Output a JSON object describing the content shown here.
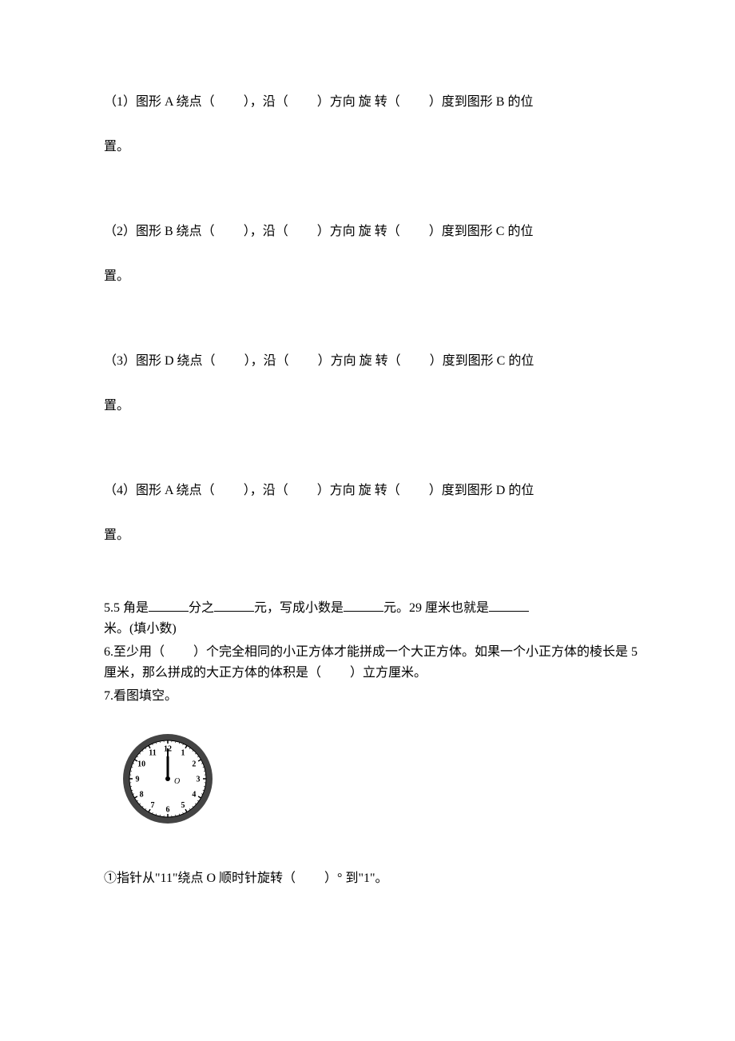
{
  "q1": {
    "prefix": "（1）图形 A 绕点（",
    "mid1": "），沿（",
    "mid2": "）方向 旋 转（",
    "mid3": "）度到图形 B 的位",
    "line2": "置。"
  },
  "q2": {
    "prefix": "（2）图形 B 绕点（",
    "mid1": "），沿（",
    "mid2": "）方向 旋 转（",
    "mid3": "）度到图形 C 的位",
    "line2": "置。"
  },
  "q3": {
    "prefix": "（3）图形 D 绕点（",
    "mid1": "），沿（",
    "mid2": "）方向 旋 转（",
    "mid3": "）度到图形 C 的位",
    "line2": "置。"
  },
  "q4": {
    "prefix": "（4）图形 A 绕点（",
    "mid1": "），沿（",
    "mid2": "）方向 旋 转（",
    "mid3": "）度到图形 D 的位",
    "line2": "置。"
  },
  "q5": {
    "part1": "5.5 角是",
    "part2": "分之",
    "part3": "元，写成小数是",
    "part4": "元。29 厘米也就是",
    "part5": "米。(填小数)"
  },
  "q6": {
    "part1": "6.至少用（",
    "part2": "）个完全相同的小正方体才能拼成一个大正方体。如果一个小正方体的棱长是 5 厘米，那么拼成的大正方体的体积是（",
    "part3": "）立方厘米。"
  },
  "q7": {
    "title": "7.看图填空。",
    "sub1_part1": "①指针从\"11\"绕点 O 顺时针旋转（",
    "sub1_part2": "）° 到\"1\"。"
  },
  "clock": {
    "outer_ring_color": "#444444",
    "face_color": "#ffffff",
    "number_color": "#000000",
    "hand_color": "#000000",
    "tick_color": "#000000",
    "numbers": [
      "12",
      "1",
      "2",
      "3",
      "4",
      "5",
      "6",
      "7",
      "8",
      "9",
      "10",
      "11"
    ],
    "center_label": "O",
    "font_size": 10,
    "hour_hand_angle": 0,
    "minute_hand_angle": 0
  }
}
